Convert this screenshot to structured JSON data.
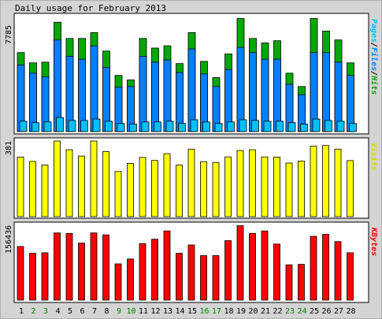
{
  "title": "Daily usage for February 2013",
  "colors": {
    "background": "#d4d4d4",
    "panel": "#ffffff",
    "hits": "#00a800",
    "files": "#0080ff",
    "pages": "#00c0ff",
    "visits": "#ffff00",
    "kbytes": "#ff0000",
    "weekend_label": "#008000"
  },
  "chart_data": [
    {
      "type": "bar",
      "panel": "hits-files-pages",
      "max_label": "7785",
      "legend": [
        "Pages",
        "Files",
        "Hits"
      ],
      "legend_separator": "/",
      "categories": [
        "1",
        "2",
        "3",
        "4",
        "5",
        "6",
        "7",
        "8",
        "9",
        "10",
        "11",
        "12",
        "13",
        "14",
        "15",
        "16",
        "17",
        "18",
        "19",
        "20",
        "21",
        "22",
        "23",
        "24",
        "25",
        "26",
        "27",
        "28"
      ],
      "weekend_days": [
        "2",
        "3",
        "9",
        "10",
        "16",
        "17",
        "23",
        "24"
      ],
      "ylim": [
        0,
        7785
      ],
      "series": [
        {
          "name": "Hits",
          "values": [
            5350,
            4650,
            4700,
            7400,
            6300,
            6300,
            6700,
            5450,
            3800,
            3500,
            6300,
            5650,
            5800,
            4600,
            6700,
            4750,
            3650,
            5250,
            7650,
            6300,
            6000,
            6150,
            3950,
            3050,
            7650,
            6800,
            6200,
            4650
          ]
        },
        {
          "name": "Files",
          "values": [
            4500,
            3950,
            3700,
            6200,
            5100,
            4900,
            5800,
            4350,
            3000,
            3050,
            5100,
            4700,
            4850,
            4000,
            5600,
            3900,
            3050,
            4200,
            5700,
            5350,
            4900,
            4900,
            3200,
            2500,
            5350,
            5350,
            4700,
            3800
          ]
        },
        {
          "name": "Pages",
          "values": [
            700,
            600,
            650,
            950,
            750,
            750,
            850,
            700,
            550,
            500,
            650,
            650,
            700,
            550,
            800,
            650,
            550,
            650,
            800,
            750,
            700,
            700,
            600,
            500,
            850,
            750,
            700,
            550
          ]
        }
      ]
    },
    {
      "type": "bar",
      "panel": "visits",
      "max_label": "381",
      "legend": [
        "Visits"
      ],
      "categories": [
        "1",
        "2",
        "3",
        "4",
        "5",
        "6",
        "7",
        "8",
        "9",
        "10",
        "11",
        "12",
        "13",
        "14",
        "15",
        "16",
        "17",
        "18",
        "19",
        "20",
        "21",
        "22",
        "23",
        "24",
        "25",
        "26",
        "27",
        "28"
      ],
      "ylim": [
        0,
        381
      ],
      "series": [
        {
          "name": "Visits",
          "values": [
            300,
            278,
            260,
            381,
            337,
            305,
            381,
            328,
            227,
            268,
            298,
            283,
            317,
            260,
            340,
            277,
            273,
            301,
            333,
            337,
            301,
            300,
            270,
            280,
            355,
            358,
            340,
            282
          ]
        }
      ]
    },
    {
      "type": "bar",
      "panel": "kbytes",
      "max_label": "156436",
      "legend": [
        "KBytes"
      ],
      "categories": [
        "1",
        "2",
        "3",
        "4",
        "5",
        "6",
        "7",
        "8",
        "9",
        "10",
        "11",
        "12",
        "13",
        "14",
        "15",
        "16",
        "17",
        "18",
        "19",
        "20",
        "21",
        "22",
        "23",
        "24",
        "25",
        "26",
        "27",
        "28"
      ],
      "ylim": [
        0,
        156436
      ],
      "series": [
        {
          "name": "KBytes",
          "values": [
            111000,
            97000,
            98000,
            139000,
            138000,
            118000,
            139000,
            135000,
            75000,
            85000,
            117000,
            126000,
            143000,
            97000,
            114000,
            92000,
            92000,
            123000,
            154000,
            138000,
            143000,
            116000,
            73000,
            74000,
            132000,
            136000,
            121000,
            98000
          ]
        }
      ]
    }
  ]
}
